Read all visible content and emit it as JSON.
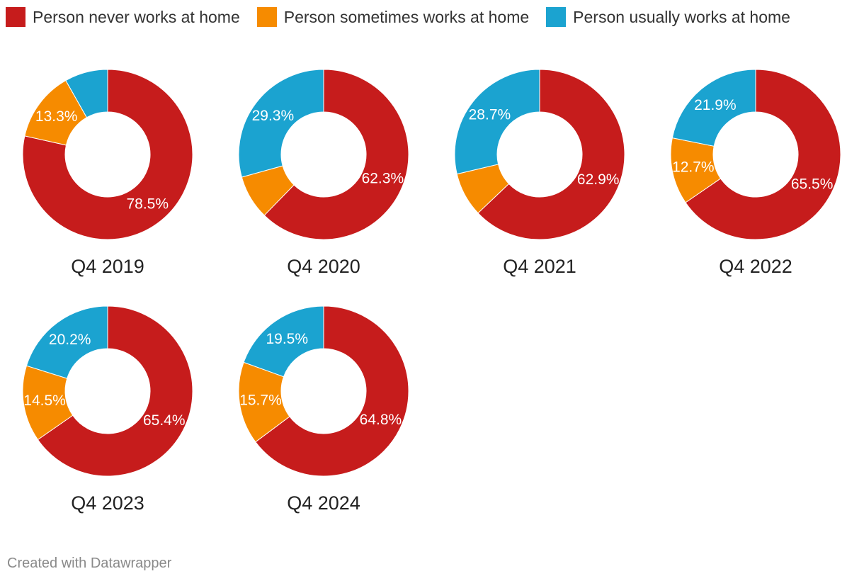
{
  "legend": [
    {
      "label": "Person never works at home",
      "color": "#c61c1c"
    },
    {
      "label": "Person sometimes works at home",
      "color": "#f68b00"
    },
    {
      "label": "Person usually works at home",
      "color": "#1ba3d0"
    }
  ],
  "chart_data": {
    "type": "pie",
    "variant": "donut",
    "series_names": [
      "Person never works at home",
      "Person sometimes works at home",
      "Person usually works at home"
    ],
    "colors": [
      "#c61c1c",
      "#f68b00",
      "#1ba3d0"
    ],
    "panels": [
      {
        "title": "Q4 2019",
        "values": [
          78.5,
          13.3,
          8.2
        ],
        "labels": [
          "78.5%",
          "13.3%",
          ""
        ]
      },
      {
        "title": "Q4 2020",
        "values": [
          62.3,
          8.4,
          29.3
        ],
        "labels": [
          "62.3%",
          "",
          "29.3%"
        ]
      },
      {
        "title": "Q4 2021",
        "values": [
          62.9,
          8.4,
          28.7
        ],
        "labels": [
          "62.9%",
          "",
          "28.7%"
        ]
      },
      {
        "title": "Q4 2022",
        "values": [
          65.5,
          12.7,
          21.9
        ],
        "labels": [
          "65.5%",
          "12.7%",
          "21.9%"
        ]
      },
      {
        "title": "Q4 2023",
        "values": [
          65.4,
          14.5,
          20.2
        ],
        "labels": [
          "65.4%",
          "14.5%",
          "20.2%"
        ]
      },
      {
        "title": "Q4 2024",
        "values": [
          64.8,
          15.7,
          19.5
        ],
        "labels": [
          "64.8%",
          "15.7%",
          "19.5%"
        ]
      }
    ]
  },
  "footer": {
    "credit": "Created with Datawrapper"
  }
}
